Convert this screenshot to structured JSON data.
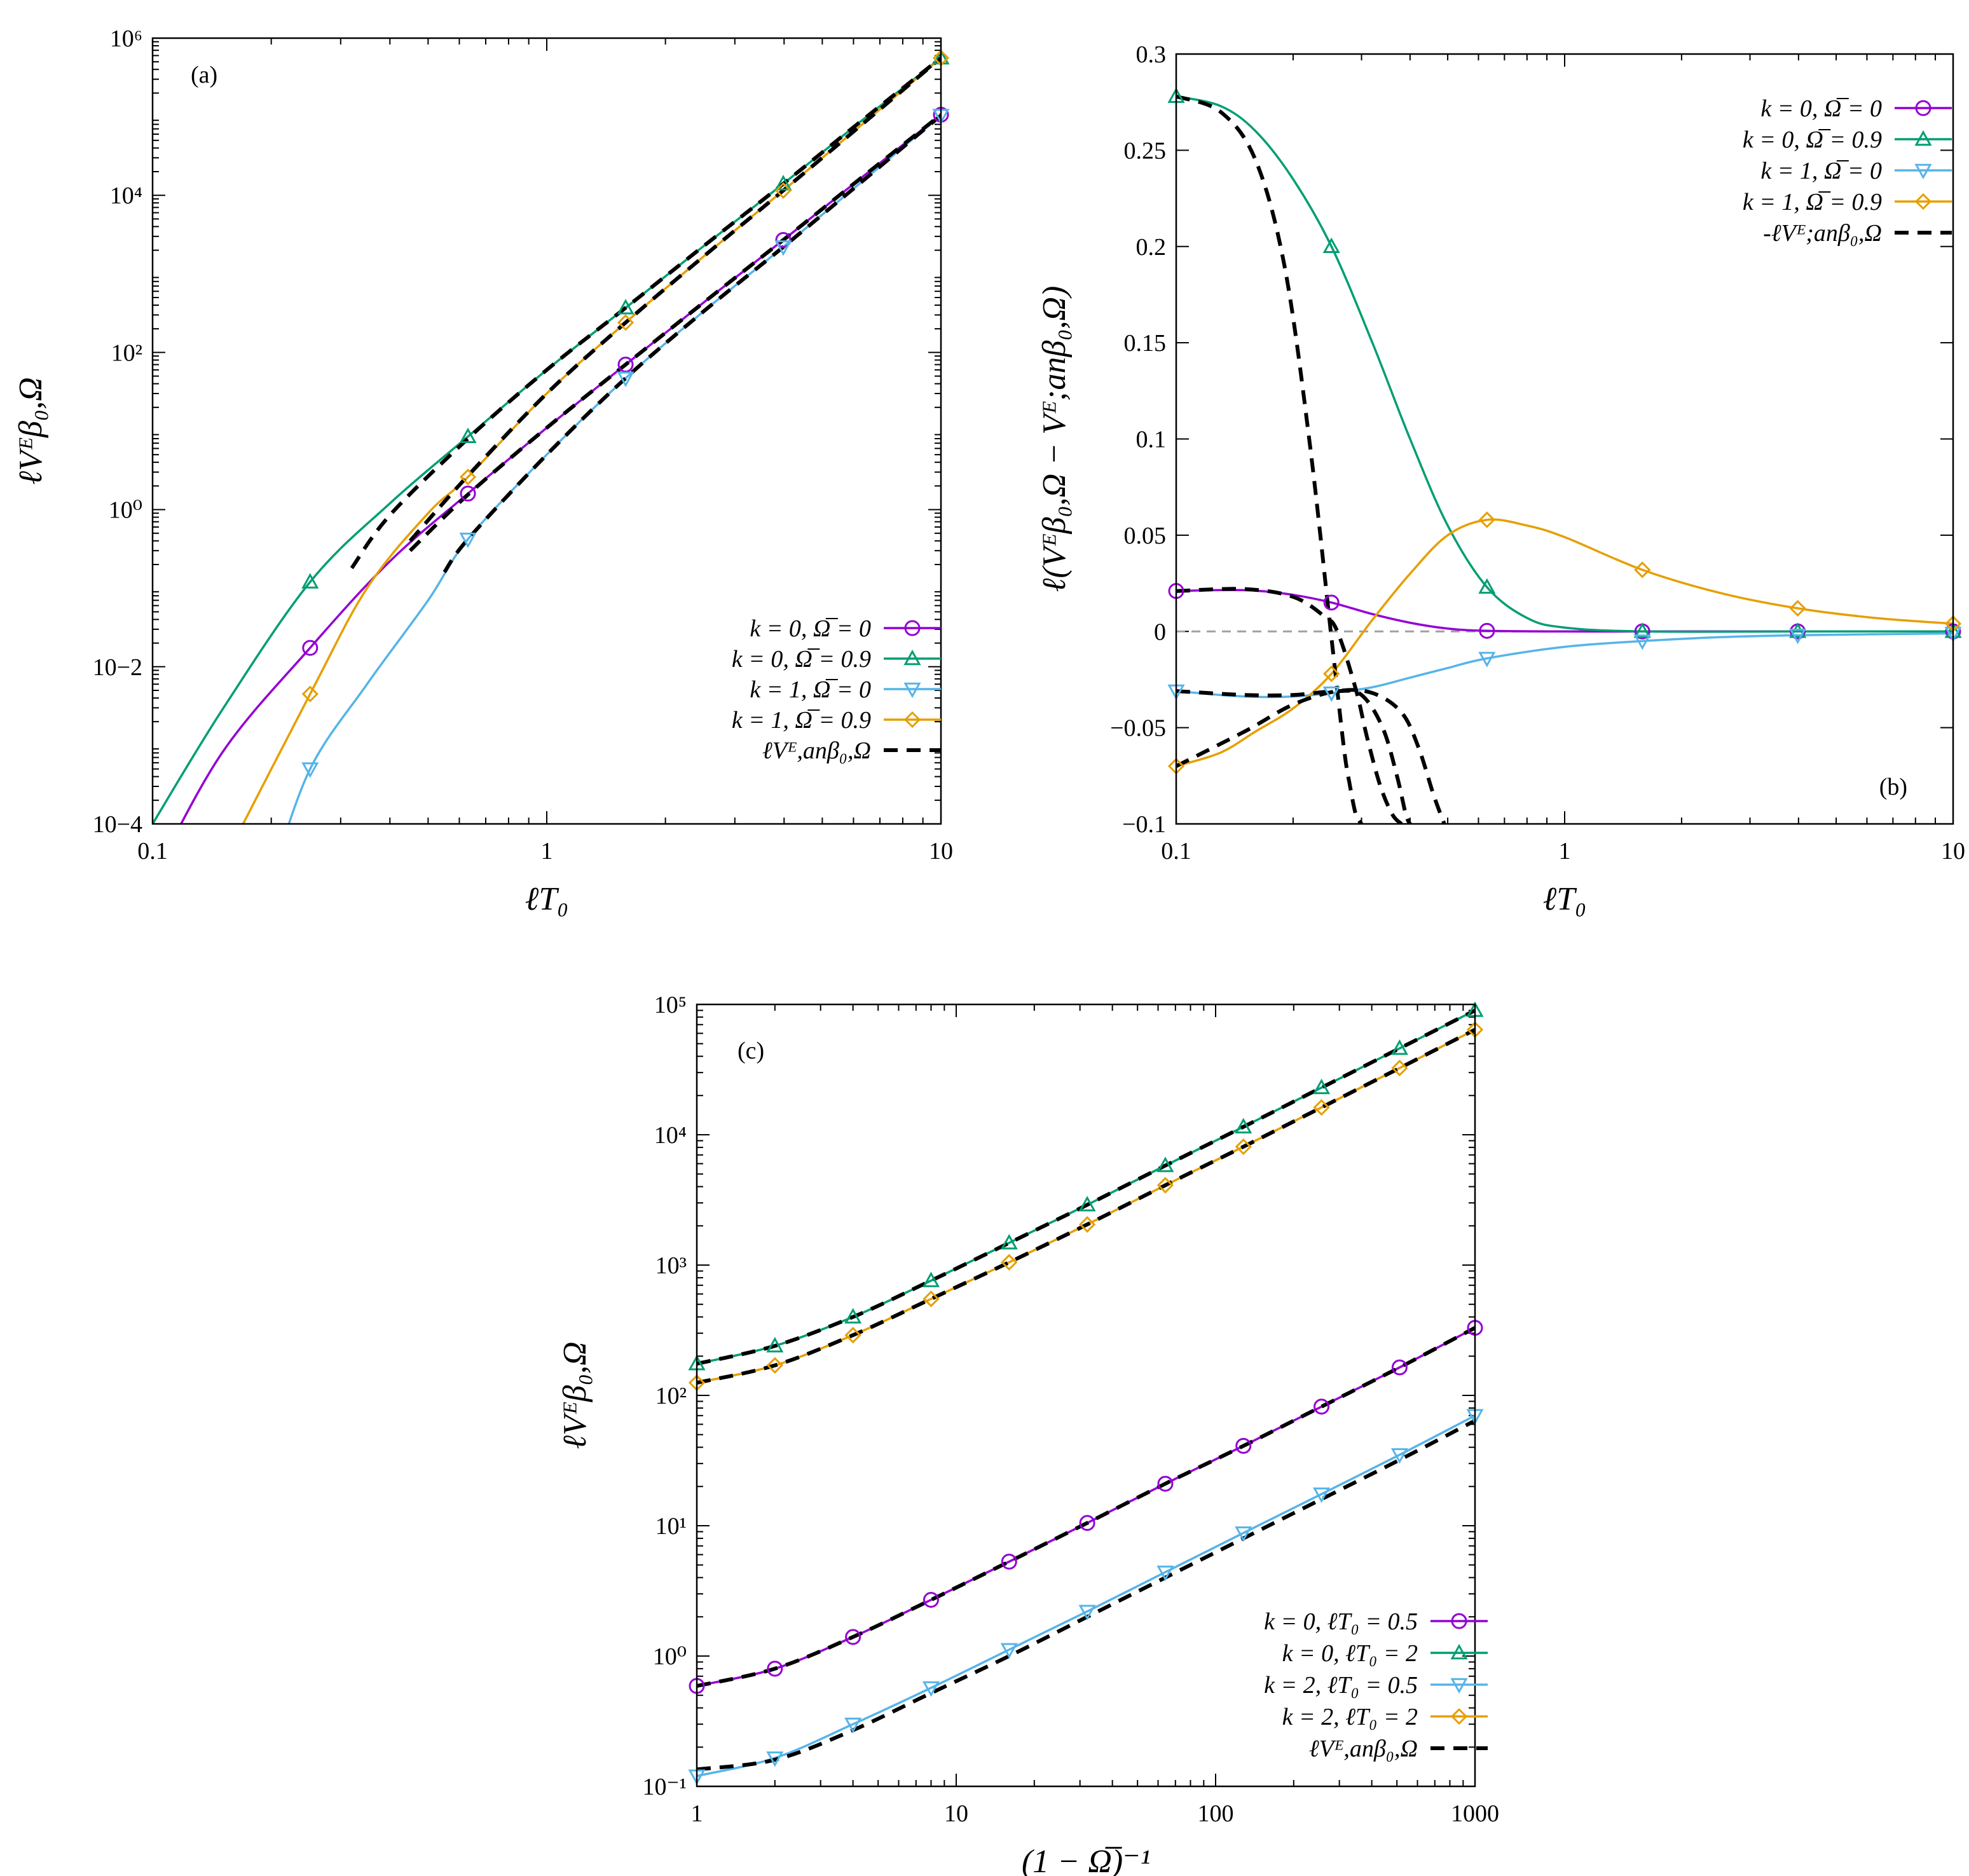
{
  "colors": {
    "purple": "#9400d3",
    "green": "#009e73",
    "blue": "#56b4e9",
    "orange": "#e69f00",
    "analytic": "#000000",
    "zero_line": "#a0a0a0"
  },
  "chart_data": [
    {
      "id": "a",
      "type": "line",
      "panel_label": "(a)",
      "xscale": "log",
      "yscale": "log",
      "xlim": [
        0.1,
        10
      ],
      "ylim": [
        0.0001,
        1000000
      ],
      "xticks": [
        0.1,
        1,
        10
      ],
      "xtick_labels": [
        "0.1",
        "1",
        "10"
      ],
      "yticks": [
        0.0001,
        0.01,
        1,
        100,
        10000,
        1000000
      ],
      "ytick_labels": [
        "10−4",
        "10−2",
        "10⁰",
        "10²",
        "10⁴",
        "10⁶"
      ],
      "xlabel": "ℓT₀",
      "ylabel": "ℓVᴱβ₀,Ω",
      "legend_position": "bottom-right",
      "series": [
        {
          "name": "k = 0, Ω̅ = 0",
          "color": "purple",
          "marker": "circle",
          "x": [
            0.1,
            0.15,
            0.25,
            0.4,
            0.631,
            1,
            1.585,
            2.512,
            3.981,
            6.31,
            10
          ],
          "y": [
            2e-05,
            0.0008,
            0.017,
            0.22,
            1.6,
            11,
            70,
            440,
            2700,
            17000,
            106000
          ]
        },
        {
          "name": "k = 0, Ω̅ = 0.9",
          "color": "green",
          "marker": "triangle-up",
          "x": [
            0.1,
            0.15,
            0.251,
            0.4,
            0.631,
            1,
            1.585,
            2.512,
            3.981,
            6.31,
            10
          ],
          "y": [
            0.0001,
            0.0028,
            0.12,
            1.2,
            8.5,
            60,
            370,
            2300,
            14000,
            90000,
            560000
          ]
        },
        {
          "name": "k = 1, Ω̅ = 0",
          "color": "blue",
          "marker": "triangle-down",
          "x": [
            0.2,
            0.251,
            0.35,
            0.5,
            0.631,
            1,
            1.585,
            2.512,
            3.981,
            6.31,
            10
          ],
          "y": [
            2e-05,
            0.0005,
            0.006,
            0.07,
            0.42,
            5,
            47,
            340,
            2200,
            15000,
            104000
          ]
        },
        {
          "name": "k = 1, Ω̅ = 0.9",
          "color": "orange",
          "marker": "diamond",
          "x": [
            0.15,
            0.251,
            0.35,
            0.5,
            0.631,
            1,
            1.585,
            2.512,
            3.981,
            6.31,
            10
          ],
          "y": [
            3e-05,
            0.0045,
            0.1,
            0.9,
            2.6,
            30,
            240,
            1700,
            11500,
            80000,
            560000
          ]
        },
        {
          "name": "ℓVᴱ,anβ₀,Ω",
          "color": "analytic",
          "marker": "none",
          "dash": true,
          "segments": [
            {
              "x": [
                0.32,
                0.4,
                0.631,
                1,
                1.585,
                2.512,
                3.981,
                6.31,
                10
              ],
              "y": [
                0.18,
                0.85,
                8,
                60,
                370,
                2300,
                14000,
                90000,
                560000
              ]
            },
            {
              "x": [
                0.45,
                0.631,
                1,
                1.585,
                2.512,
                3.981,
                6.31,
                10
              ],
              "y": [
                0.4,
                2.7,
                30,
                240,
                1700,
                11500,
                80000,
                560000
              ]
            },
            {
              "x": [
                0.45,
                0.631,
                1,
                1.585,
                2.512,
                3.981,
                6.31,
                10
              ],
              "y": [
                0.3,
                1.55,
                11,
                70,
                440,
                2700,
                17000,
                106000
              ]
            },
            {
              "x": [
                0.55,
                0.631,
                1,
                1.585,
                2.512,
                3.981,
                6.31,
                10
              ],
              "y": [
                0.16,
                0.42,
                5,
                47,
                340,
                2200,
                15000,
                104000
              ]
            }
          ]
        }
      ],
      "markers_at": [
        0.251,
        0.631,
        1.585,
        3.981,
        10
      ]
    },
    {
      "id": "b",
      "type": "line",
      "panel_label": "(b)",
      "xscale": "log",
      "yscale": "linear",
      "xlim": [
        0.1,
        10
      ],
      "ylim": [
        -0.1,
        0.3
      ],
      "xticks": [
        0.1,
        1,
        10
      ],
      "xtick_labels": [
        "0.1",
        "1",
        "10"
      ],
      "yticks": [
        -0.1,
        -0.05,
        0,
        0.05,
        0.1,
        0.15,
        0.2,
        0.25,
        0.3
      ],
      "ytick_labels": [
        "−0.1",
        "−0.05",
        "0",
        "0.05",
        "0.1",
        "0.15",
        "0.2",
        "0.25",
        "0.3"
      ],
      "xlabel": "ℓT₀",
      "ylabel": "ℓ(Vᴱβ₀,Ω − Vᴱ;anβ₀,Ω)",
      "legend_position": "top-right",
      "zero_line": true,
      "series": [
        {
          "name": "k = 0, Ω̅ = 0",
          "color": "purple",
          "marker": "circle",
          "x": [
            0.1,
            0.13,
            0.16,
            0.2,
            0.251,
            0.32,
            0.4,
            0.5,
            0.631,
            1,
            1.585,
            3.981,
            10
          ],
          "y": [
            0.021,
            0.0215,
            0.0212,
            0.019,
            0.015,
            0.009,
            0.0045,
            0.0015,
            0.0003,
            0,
            0,
            0,
            0
          ]
        },
        {
          "name": "k = 0, Ω̅ = 0.9",
          "color": "green",
          "marker": "triangle-up",
          "x": [
            0.1,
            0.13,
            0.16,
            0.2,
            0.251,
            0.32,
            0.4,
            0.5,
            0.631,
            0.8,
            1,
            1.585,
            3.981,
            10
          ],
          "y": [
            0.278,
            0.273,
            0.26,
            0.235,
            0.2,
            0.15,
            0.1,
            0.055,
            0.023,
            0.007,
            0.002,
            0,
            0,
            0
          ]
        },
        {
          "name": "k = 1, Ω̅ = 0",
          "color": "blue",
          "marker": "triangle-down",
          "x": [
            0.1,
            0.13,
            0.16,
            0.2,
            0.251,
            0.32,
            0.4,
            0.5,
            0.631,
            1,
            1.585,
            2.512,
            3.981,
            10
          ],
          "y": [
            -0.031,
            -0.033,
            -0.034,
            -0.0338,
            -0.032,
            -0.029,
            -0.024,
            -0.019,
            -0.014,
            -0.008,
            -0.005,
            -0.003,
            -0.002,
            -0.001
          ]
        },
        {
          "name": "k = 1, Ω̅ = 0.9",
          "color": "orange",
          "marker": "diamond",
          "x": [
            0.1,
            0.13,
            0.16,
            0.2,
            0.251,
            0.32,
            0.4,
            0.5,
            0.631,
            0.8,
            1,
            1.585,
            2.512,
            3.981,
            6.31,
            10
          ],
          "y": [
            -0.07,
            -0.063,
            -0.052,
            -0.04,
            -0.022,
            0.006,
            0.03,
            0.05,
            0.058,
            0.055,
            0.049,
            0.032,
            0.02,
            0.012,
            0.007,
            0.004
          ]
        },
        {
          "name": "-ℓVᴱ;anβ₀,Ω",
          "color": "analytic",
          "marker": "none",
          "dash": true,
          "segments": [
            {
              "x": [
                0.1,
                0.13,
                0.16,
                0.19,
                0.22,
                0.25,
                0.27,
                0.28,
                0.29,
                0.3
              ],
              "y": [
                0.278,
                0.27,
                0.245,
                0.19,
                0.1,
                0.0,
                -0.06,
                -0.08,
                -0.095,
                -0.1
              ]
            },
            {
              "x": [
                0.1,
                0.15,
                0.2,
                0.24,
                0.26,
                0.29,
                0.31,
                0.335,
                0.36,
                0.38
              ],
              "y": [
                0.021,
                0.022,
                0.018,
                0.008,
                0.0,
                -0.03,
                -0.055,
                -0.08,
                -0.095,
                -0.1
              ]
            },
            {
              "x": [
                0.1,
                0.15,
                0.2,
                0.26,
                0.3,
                0.34,
                0.37,
                0.39,
                0.4
              ],
              "y": [
                -0.031,
                -0.033,
                -0.033,
                -0.031,
                -0.033,
                -0.05,
                -0.075,
                -0.095,
                -0.1
              ]
            },
            {
              "x": [
                0.1,
                0.15,
                0.2,
                0.26,
                0.32,
                0.38,
                0.42,
                0.46,
                0.49
              ],
              "y": [
                -0.07,
                -0.052,
                -0.038,
                -0.031,
                -0.032,
                -0.042,
                -0.06,
                -0.085,
                -0.1
              ]
            }
          ]
        }
      ],
      "markers_at": [
        0.1,
        0.251,
        0.631,
        1.585,
        3.981,
        10
      ]
    },
    {
      "id": "c",
      "type": "line",
      "panel_label": "(c)",
      "xscale": "log",
      "yscale": "log",
      "xlim": [
        1,
        1000
      ],
      "ylim": [
        0.1,
        100000
      ],
      "xticks": [
        1,
        10,
        100,
        1000
      ],
      "xtick_labels": [
        "1",
        "10",
        "100",
        "1000"
      ],
      "yticks": [
        0.1,
        1,
        10,
        100,
        1000,
        10000,
        100000
      ],
      "ytick_labels": [
        "10⁻¹",
        "10⁰",
        "10¹",
        "10²",
        "10³",
        "10⁴",
        "10⁵"
      ],
      "xlabel": "(1 − Ω̅)⁻¹",
      "ylabel": "ℓVᴱβ₀,Ω",
      "legend_position": "bottom-right",
      "series": [
        {
          "name": "k = 0, ℓT₀ = 0.5",
          "color": "purple",
          "marker": "circle",
          "x": [
            1,
            2,
            4,
            8,
            16,
            32,
            64,
            128,
            256,
            512,
            1000
          ],
          "y": [
            0.59,
            0.8,
            1.4,
            2.7,
            5.3,
            10.5,
            21,
            41,
            82,
            164,
            330
          ]
        },
        {
          "name": "k = 0, ℓT₀ = 2",
          "color": "green",
          "marker": "triangle-up",
          "x": [
            1,
            2,
            4,
            8,
            16,
            32,
            64,
            128,
            256,
            512,
            1000
          ],
          "y": [
            175,
            240,
            400,
            760,
            1480,
            2900,
            5800,
            11500,
            23000,
            46000,
            90000
          ]
        },
        {
          "name": "k = 2, ℓT₀ = 0.5",
          "color": "blue",
          "marker": "triangle-down",
          "x": [
            1,
            2,
            4,
            8,
            16,
            32,
            64,
            128,
            256,
            512,
            1000
          ],
          "y": [
            0.12,
            0.165,
            0.3,
            0.57,
            1.12,
            2.2,
            4.4,
            8.8,
            17.5,
            35,
            70
          ]
        },
        {
          "name": "k = 2, ℓT₀ = 2",
          "color": "orange",
          "marker": "diamond",
          "x": [
            1,
            2,
            4,
            8,
            16,
            32,
            64,
            128,
            256,
            512,
            1000
          ],
          "y": [
            125,
            170,
            290,
            550,
            1050,
            2050,
            4100,
            8100,
            16200,
            32500,
            64000
          ]
        },
        {
          "name": "ℓVᴱ,anβ₀,Ω",
          "color": "analytic",
          "marker": "none",
          "dash": true,
          "segments": [
            {
              "x": [
                1,
                2,
                4,
                8,
                16,
                32,
                64,
                128,
                256,
                512,
                1000
              ],
              "y": [
                0.59,
                0.8,
                1.4,
                2.7,
                5.3,
                10.5,
                21,
                41,
                82,
                164,
                330
              ]
            },
            {
              "x": [
                1,
                2,
                4,
                8,
                16,
                32,
                64,
                128,
                256,
                512,
                1000
              ],
              "y": [
                175,
                240,
                400,
                760,
                1480,
                2900,
                5800,
                11500,
                23000,
                46000,
                90000
              ]
            },
            {
              "x": [
                1,
                2,
                4,
                8,
                16,
                32,
                64,
                128,
                256,
                512,
                1000
              ],
              "y": [
                0.135,
                0.16,
                0.27,
                0.52,
                1.0,
                2.0,
                4.0,
                8.0,
                16,
                32,
                64
              ]
            },
            {
              "x": [
                1,
                2,
                4,
                8,
                16,
                32,
                64,
                128,
                256,
                512,
                1000
              ],
              "y": [
                125,
                170,
                290,
                550,
                1050,
                2050,
                4100,
                8100,
                16200,
                32500,
                64000
              ]
            }
          ]
        }
      ],
      "markers_at": [
        1,
        2,
        4,
        8,
        16,
        32,
        64,
        128,
        256,
        512,
        1000
      ]
    }
  ]
}
